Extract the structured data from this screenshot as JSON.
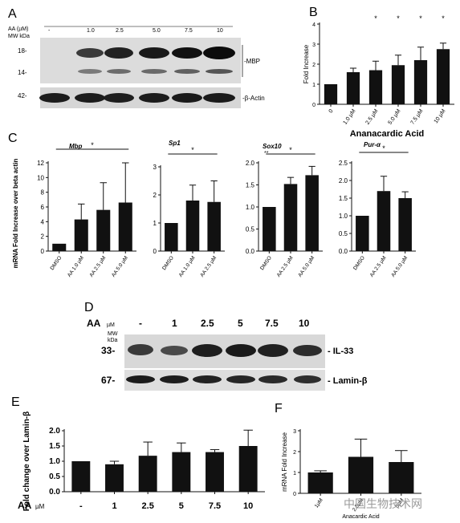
{
  "blot_a": {
    "letter": "A",
    "header": "AA (µM)",
    "header_sub": "MW kDa",
    "lanes": [
      "-",
      "1.0",
      "2.5",
      "5.0",
      "7.5",
      "10"
    ],
    "mw_markers": [
      "18-",
      "14-",
      "42-"
    ],
    "band_labels": [
      "-MBP",
      "-β-Actin"
    ]
  },
  "blot_d": {
    "letter": "D",
    "header": "AA",
    "header_unit": "µM",
    "mw_header": "MW",
    "mw_unit": "kDa",
    "lanes": [
      "-",
      "1",
      "2.5",
      "5",
      "7.5",
      "10"
    ],
    "mw_markers": [
      "33-",
      "67-"
    ],
    "band_labels": [
      "- IL-33",
      "- Lamin-β"
    ]
  },
  "e_lanes_header": "AA",
  "e_lanes_unit": "µM",
  "watermark": "中国生物技术网",
  "chart_data": [
    {
      "id": "B",
      "letter": "B",
      "type": "bar",
      "categories": [
        "0",
        "1.0 µM",
        "2.5 µM",
        "5.0 µM",
        "7.5 µM",
        "10 µM"
      ],
      "values": [
        1.0,
        1.6,
        1.7,
        1.95,
        2.2,
        2.75
      ],
      "errors": [
        0.0,
        0.2,
        0.45,
        0.5,
        0.65,
        0.3
      ],
      "significance": [
        "",
        "",
        "*",
        "*",
        "*",
        "*"
      ],
      "ylabel": "Fold Increase",
      "xlabel": "Ananacardic Acid",
      "ylim": [
        0,
        4
      ],
      "yticks": [
        0,
        1,
        2,
        3,
        4
      ],
      "color": "#111111"
    },
    {
      "id": "C1",
      "letter": "C",
      "type": "bar",
      "title": "Mbp",
      "categories": [
        "DMSO",
        "AA 1.0 µM",
        "AA 2.5 µM",
        "AA 5.0 µM"
      ],
      "values": [
        1.0,
        4.3,
        5.6,
        6.6
      ],
      "errors": [
        0.0,
        2.1,
        3.7,
        5.4
      ],
      "significance_bracket": "*",
      "ylabel": "mRNA Fold Increase over beta actin",
      "ylim": [
        0,
        12
      ],
      "yticks": [
        0,
        2,
        4,
        6,
        8,
        10,
        12
      ],
      "color": "#111111"
    },
    {
      "id": "C2",
      "type": "bar",
      "title": "Sp1",
      "categories": [
        "DMSO",
        "AA 1.0 µM",
        "AA 2.5 µM"
      ],
      "values": [
        1.0,
        1.8,
        1.75
      ],
      "errors": [
        0.0,
        0.55,
        0.75
      ],
      "significance_bracket": "*",
      "ylim": [
        0,
        3
      ],
      "yticks": [
        0,
        1,
        2,
        3
      ],
      "color": "#111111"
    },
    {
      "id": "C3",
      "type": "bar",
      "title": "Sox10",
      "categories": [
        "DMSO",
        "AA 2.5 µM",
        "AA 5.0 µM"
      ],
      "values": [
        1.0,
        1.52,
        1.72
      ],
      "errors": [
        0.0,
        0.15,
        0.2
      ],
      "significance_bracket": "*",
      "title_suffix": "**",
      "ylim": [
        0,
        2.0
      ],
      "yticks": [
        "0.0",
        "0.5",
        "1.0",
        "1.5",
        "2.0"
      ],
      "color": "#111111"
    },
    {
      "id": "C4",
      "type": "bar",
      "title": "Pur-α",
      "categories": [
        "DMSO",
        "AA 2.5 µM",
        "AA 5.0 µM"
      ],
      "values": [
        1.0,
        1.7,
        1.5
      ],
      "errors": [
        0.0,
        0.42,
        0.18
      ],
      "significance_bracket": "*",
      "ylim": [
        0,
        2.5
      ],
      "yticks": [
        "0.0",
        "0.5",
        "1.0",
        "1.5",
        "2.0",
        "2.5"
      ],
      "color": "#111111"
    },
    {
      "id": "E",
      "letter": "E",
      "type": "bar",
      "categories": [
        "-",
        "1",
        "2.5",
        "5",
        "7.5",
        "10"
      ],
      "values": [
        1.0,
        0.9,
        1.18,
        1.3,
        1.3,
        1.5
      ],
      "errors": [
        0.0,
        0.1,
        0.45,
        0.3,
        0.08,
        0.52
      ],
      "ylabel": "Fold change over Lamin-β",
      "ylim": [
        0,
        2.0
      ],
      "yticks": [
        "0.0",
        "0.5",
        "1.0",
        "1.5",
        "2.0"
      ],
      "color": "#111111"
    },
    {
      "id": "F",
      "letter": "F",
      "type": "bar",
      "categories": [
        "1µM",
        "2.5µM",
        "5µM"
      ],
      "values": [
        1.0,
        1.75,
        1.5
      ],
      "errors": [
        0.08,
        0.85,
        0.55
      ],
      "ylabel": "mRNA Fold Increase",
      "xlabel": "Anacardic Acid",
      "ylim": [
        0,
        3
      ],
      "yticks": [
        0,
        1,
        2,
        3
      ],
      "color": "#111111"
    }
  ]
}
